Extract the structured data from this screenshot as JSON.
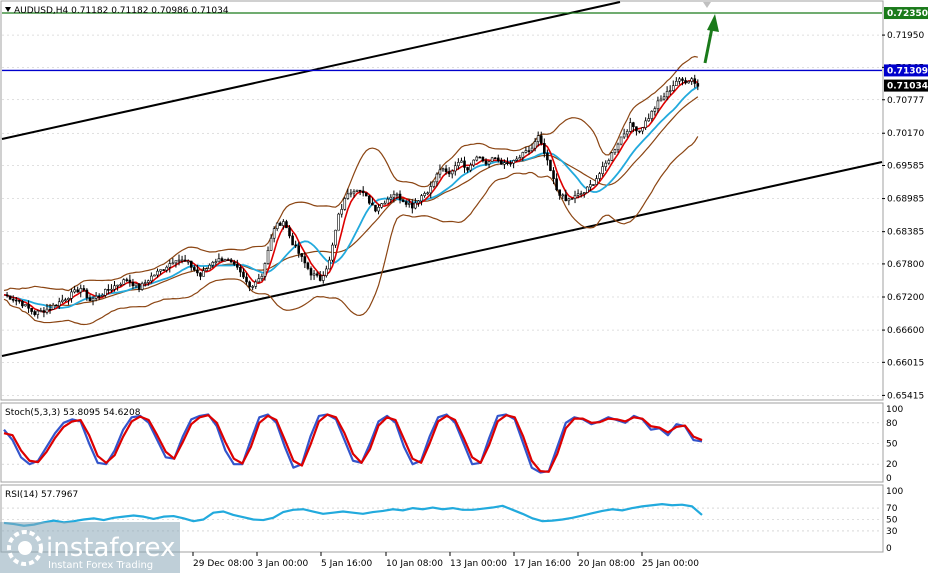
{
  "header": {
    "symbol_line": "AUDUSD,H4  0.71182 0.71182 0.70986 0.71034"
  },
  "watermark": {
    "brand": "instaforex",
    "tagline": "Instant Forex Trading"
  },
  "colors": {
    "candle_up": "#000000",
    "candle_down": "#000000",
    "ma_fast": "#dd0000",
    "ma_slow": "#22aadd",
    "bollinger": "#8b4513",
    "channel": "#000000",
    "resistance_line": "#0000cc",
    "target_line": "#1a7a1a",
    "arrow": "#1a7a1a",
    "stoch_main": "#3355cc",
    "stoch_signal": "#dd0000",
    "rsi": "#22aadd",
    "grid": "#c0c0c0"
  },
  "chart_data": [
    {
      "type": "candlestick",
      "name": "price",
      "title": "AUDUSD,H4  0.71182 0.71182 0.70986 0.71034",
      "ylim": [
        0.6535,
        0.7255
      ],
      "y_ticks": [
        "0.71950",
        "0.71365",
        "0.70777",
        "0.70170",
        "0.69585",
        "0.68985",
        "0.68385",
        "0.67800",
        "0.67200",
        "0.66600",
        "0.66015",
        "0.65415"
      ],
      "x_ticks": [
        "29 Dec 08:00",
        "3 Jan 00:00",
        "5 Jan 16:00",
        "10 Jan 08:00",
        "13 Jan 00:00",
        "17 Jan 16:00",
        "20 Jan 08:00",
        "25 Jan 00:00"
      ],
      "price_tags": [
        {
          "label": "0.72350",
          "value": 0.7235,
          "color": "#1a7a1a"
        },
        {
          "label": "0.71309",
          "value": 0.71309,
          "color": "#0000cc"
        },
        {
          "label": "0.71034",
          "value": 0.71034,
          "color": "#000000"
        }
      ],
      "horizontal_lines": [
        {
          "name": "target",
          "value": 0.7235
        },
        {
          "name": "resistance",
          "value": 0.71309
        }
      ],
      "close_path": [
        [
          0,
          0.6724
        ],
        [
          5,
          0.6712
        ],
        [
          10,
          0.669
        ],
        [
          15,
          0.67
        ],
        [
          20,
          0.6718
        ],
        [
          25,
          0.6736
        ],
        [
          28,
          0.6714
        ],
        [
          32,
          0.6726
        ],
        [
          36,
          0.674
        ],
        [
          40,
          0.6752
        ],
        [
          44,
          0.6736
        ],
        [
          48,
          0.6757
        ],
        [
          52,
          0.6772
        ],
        [
          56,
          0.679
        ],
        [
          60,
          0.6781
        ],
        [
          64,
          0.6758
        ],
        [
          68,
          0.6785
        ],
        [
          72,
          0.679
        ],
        [
          76,
          0.677
        ],
        [
          80,
          0.6738
        ],
        [
          84,
          0.676
        ],
        [
          88,
          0.6846
        ],
        [
          91,
          0.6858
        ],
        [
          94,
          0.6818
        ],
        [
          97,
          0.679
        ],
        [
          100,
          0.6763
        ],
        [
          103,
          0.6752
        ],
        [
          106,
          0.6785
        ],
        [
          109,
          0.6867
        ],
        [
          112,
          0.691
        ],
        [
          115,
          0.6918
        ],
        [
          118,
          0.69
        ],
        [
          121,
          0.688
        ],
        [
          124,
          0.6894
        ],
        [
          127,
          0.6908
        ],
        [
          130,
          0.6896
        ],
        [
          133,
          0.6885
        ],
        [
          136,
          0.6904
        ],
        [
          139,
          0.6918
        ],
        [
          142,
          0.6952
        ],
        [
          145,
          0.6942
        ],
        [
          148,
          0.6968
        ],
        [
          151,
          0.6954
        ],
        [
          154,
          0.6978
        ],
        [
          157,
          0.6962
        ],
        [
          160,
          0.6972
        ],
        [
          163,
          0.696
        ],
        [
          166,
          0.6964
        ],
        [
          169,
          0.6978
        ],
        [
          172,
          0.699
        ],
        [
          174,
          0.701
        ],
        [
          176,
          0.698
        ],
        [
          178,
          0.6948
        ],
        [
          180,
          0.6915
        ],
        [
          183,
          0.6894
        ],
        [
          186,
          0.6902
        ],
        [
          189,
          0.691
        ],
        [
          192,
          0.6928
        ],
        [
          195,
          0.6952
        ],
        [
          198,
          0.698
        ],
        [
          201,
          0.701
        ],
        [
          204,
          0.7032
        ],
        [
          207,
          0.7022
        ],
        [
          210,
          0.7046
        ],
        [
          213,
          0.7072
        ],
        [
          216,
          0.709
        ],
        [
          219,
          0.7112
        ],
        [
          222,
          0.7112
        ],
        [
          224,
          0.7116
        ],
        [
          226,
          0.7103
        ]
      ]
    },
    {
      "type": "line",
      "name": "stochastic",
      "title": "Stoch(5,3,3) 53.8095 54.6208",
      "ylim": [
        0,
        100
      ],
      "y_ticks": [
        "100",
        "80",
        "50",
        "20",
        "0"
      ],
      "levels": [
        80,
        50,
        20
      ],
      "series": [
        {
          "name": "Stoch main",
          "key": "stoch_main",
          "values": [
            70,
            55,
            30,
            20,
            25,
            45,
            65,
            80,
            85,
            82,
            50,
            22,
            20,
            40,
            70,
            88,
            90,
            80,
            55,
            30,
            28,
            60,
            85,
            90,
            92,
            75,
            40,
            20,
            20,
            55,
            88,
            92,
            80,
            45,
            15,
            20,
            60,
            90,
            92,
            85,
            55,
            25,
            22,
            50,
            82,
            90,
            80,
            45,
            20,
            25,
            60,
            88,
            92,
            80,
            50,
            20,
            22,
            58,
            90,
            92,
            85,
            50,
            15,
            8,
            10,
            45,
            80,
            88,
            85,
            78,
            82,
            88,
            84,
            80,
            90,
            85,
            70,
            72,
            62,
            78,
            75,
            55,
            53
          ]
        },
        {
          "name": "Stoch signal",
          "key": "stoch_signal",
          "values": [
            65,
            62,
            40,
            25,
            23,
            38,
            58,
            74,
            82,
            84,
            62,
            32,
            22,
            33,
            60,
            82,
            89,
            84,
            62,
            38,
            28,
            52,
            78,
            88,
            91,
            80,
            52,
            28,
            21,
            45,
            80,
            90,
            84,
            55,
            25,
            18,
            48,
            82,
            92,
            88,
            65,
            35,
            22,
            42,
            76,
            88,
            84,
            56,
            28,
            22,
            50,
            82,
            90,
            84,
            58,
            30,
            22,
            48,
            82,
            91,
            88,
            60,
            25,
            10,
            9,
            35,
            72,
            86,
            86,
            80,
            81,
            86,
            85,
            82,
            88,
            86,
            75,
            73,
            66,
            74,
            76,
            60,
            55
          ]
        }
      ]
    },
    {
      "type": "line",
      "name": "rsi",
      "title": "RSI(14) 57.7967",
      "ylim": [
        0,
        100
      ],
      "y_ticks": [
        "100",
        "70",
        "50",
        "30",
        "0"
      ],
      "levels": [
        70,
        50,
        30
      ],
      "series": [
        {
          "name": "RSI",
          "key": "rsi",
          "values": [
            44,
            42,
            39,
            41,
            45,
            48,
            45,
            47,
            50,
            52,
            49,
            53,
            55,
            57,
            55,
            51,
            55,
            56,
            52,
            47,
            50,
            62,
            64,
            58,
            54,
            50,
            49,
            53,
            63,
            67,
            68,
            64,
            60,
            62,
            64,
            62,
            60,
            63,
            65,
            68,
            66,
            70,
            68,
            71,
            68,
            70,
            67,
            67,
            69,
            71,
            74,
            67,
            60,
            52,
            47,
            48,
            50,
            53,
            57,
            61,
            65,
            68,
            66,
            70,
            73,
            75,
            77,
            75,
            76,
            73,
            58
          ]
        }
      ]
    }
  ]
}
